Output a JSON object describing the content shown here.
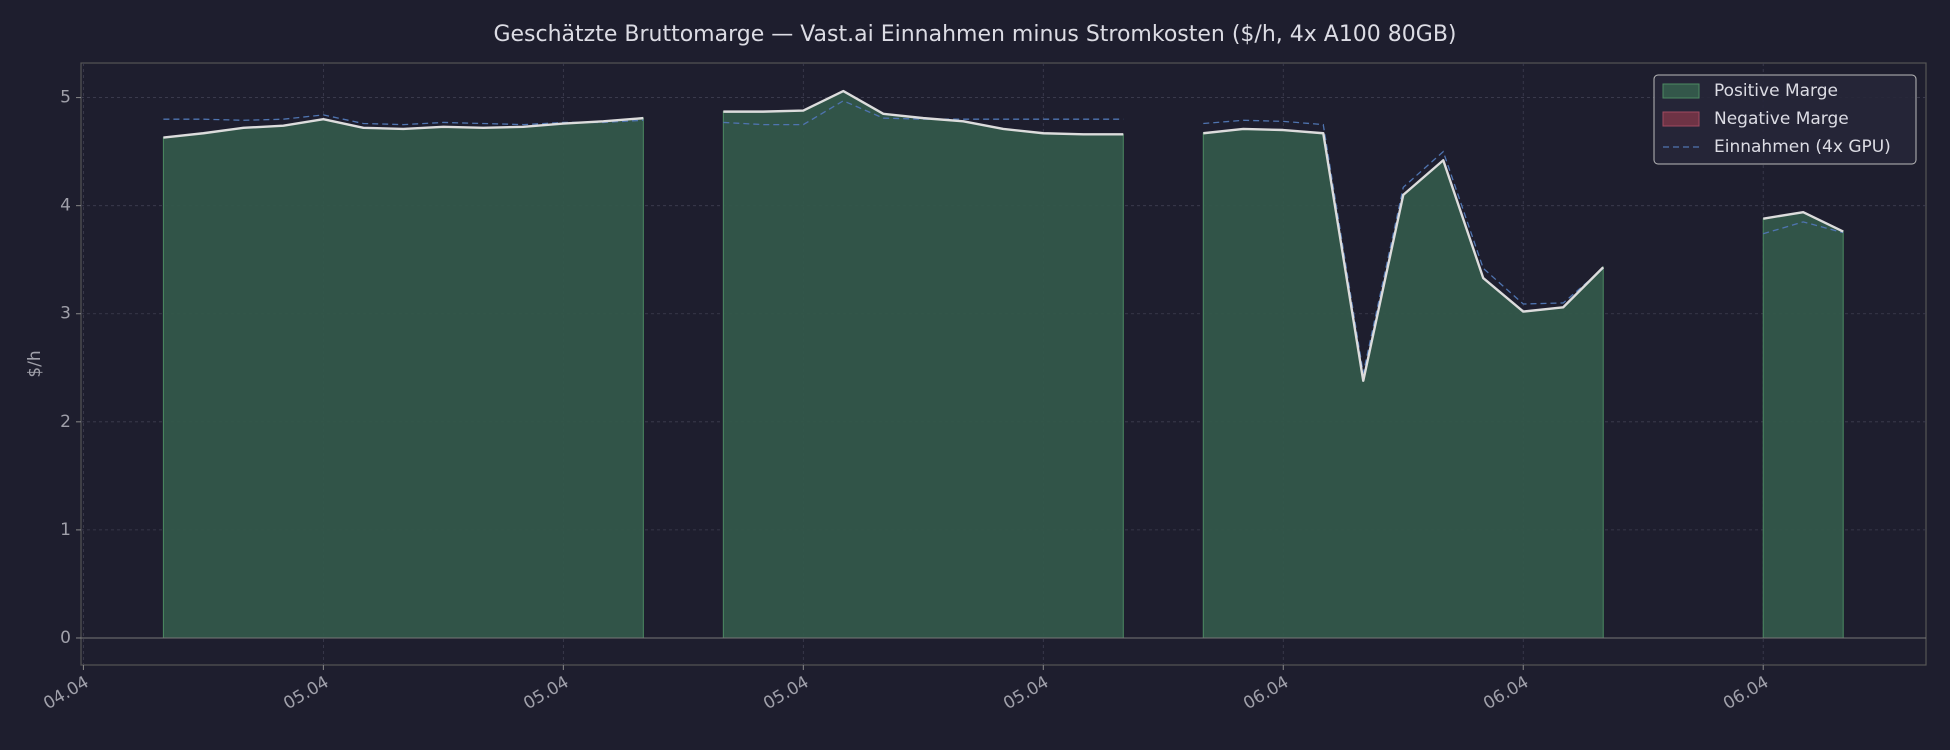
{
  "chart_data": {
    "type": "area",
    "title": "Geschätzte Bruttomarge — Vast.ai Einnahmen minus Stromkosten ($/h, 4x A100 80GB)",
    "ylabel": "$/h",
    "x": [
      2,
      3,
      4,
      5,
      6,
      7,
      8,
      9,
      10,
      11,
      12,
      13,
      14,
      15,
      16,
      17,
      18,
      19,
      20,
      21,
      22,
      23,
      24,
      25,
      26,
      27,
      28,
      29,
      30,
      31,
      32,
      33,
      34,
      35,
      36,
      37,
      38,
      39,
      40,
      41,
      42,
      43,
      44
    ],
    "series": [
      {
        "name": "Positive Marge",
        "color": "#33574a",
        "line_color": "#dcdcdc",
        "negative_name": "Negative Marge",
        "negative_color": "#6e3345",
        "values": [
          4.63,
          4.67,
          4.72,
          4.74,
          4.8,
          4.72,
          4.71,
          4.73,
          4.72,
          4.73,
          4.76,
          4.78,
          4.81,
          null,
          4.87,
          4.87,
          4.88,
          5.06,
          4.85,
          4.81,
          4.78,
          4.71,
          4.67,
          4.66,
          4.66,
          null,
          4.67,
          4.71,
          4.7,
          4.67,
          2.38,
          4.1,
          4.42,
          3.33,
          3.02,
          3.06,
          3.43,
          null,
          null,
          null,
          3.88,
          3.94,
          3.76
        ]
      },
      {
        "name": "Einnahmen (4x GPU)",
        "color": "#4f74b0",
        "dashed": true,
        "values": [
          4.8,
          4.8,
          4.79,
          4.8,
          4.84,
          4.76,
          4.75,
          4.77,
          4.76,
          4.75,
          4.77,
          4.77,
          4.79,
          null,
          4.77,
          4.75,
          4.75,
          4.97,
          4.81,
          4.8,
          4.8,
          4.8,
          4.8,
          4.8,
          4.8,
          null,
          4.76,
          4.79,
          4.78,
          4.75,
          2.45,
          4.17,
          4.5,
          3.42,
          3.09,
          3.1,
          3.42,
          null,
          null,
          null,
          3.74,
          3.85,
          3.75
        ]
      }
    ],
    "xlim": [
      -0.06,
      46.07
    ],
    "xticks": [
      {
        "value": 0,
        "label": "04.04"
      },
      {
        "value": 6,
        "label": "05.04"
      },
      {
        "value": 12,
        "label": "05.04"
      },
      {
        "value": 18,
        "label": "05.04"
      },
      {
        "value": 24,
        "label": "05.04"
      },
      {
        "value": 30,
        "label": "06.04"
      },
      {
        "value": 36,
        "label": "06.04"
      },
      {
        "value": 42,
        "label": "06.04"
      }
    ],
    "ylim": [
      -0.25,
      5.32
    ],
    "yticks": [
      0,
      1,
      2,
      3,
      4,
      5
    ],
    "grid": true,
    "legend": "upper right"
  }
}
